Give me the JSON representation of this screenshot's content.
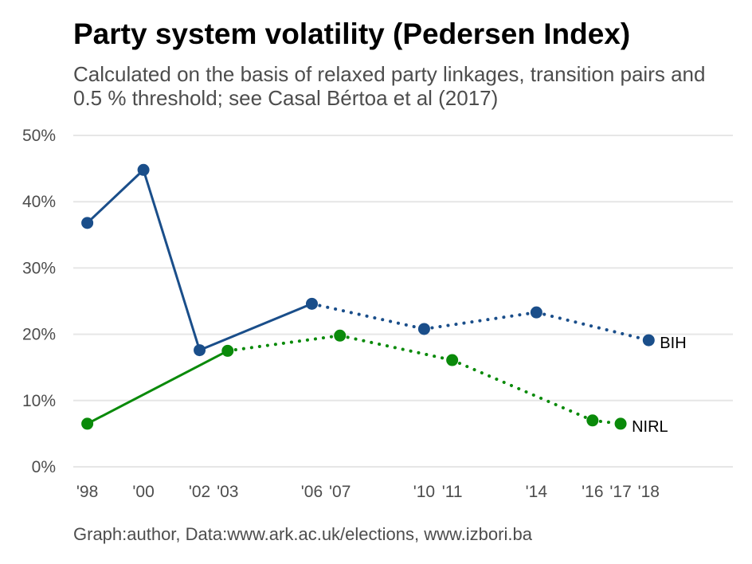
{
  "title": "Party system volatility (Pedersen Index)",
  "subtitle": "Calculated on the basis of relaxed party linkages, transition pairs and 0.5 % threshold; see Casal Bértoa et al (2017)",
  "caption": "Graph:author, Data:www.ark.ac.uk/elections, www.izbori.ba",
  "chart_data": {
    "type": "line",
    "ylim": [
      0,
      50
    ],
    "xlim": [
      1997.5,
      2021
    ],
    "y_ticks": [
      {
        "value": 0,
        "label": "0%"
      },
      {
        "value": 10,
        "label": "10%"
      },
      {
        "value": 20,
        "label": "20%"
      },
      {
        "value": 30,
        "label": "30%"
      },
      {
        "value": 40,
        "label": "40%"
      },
      {
        "value": 50,
        "label": "50%"
      }
    ],
    "x_ticks": [
      {
        "value": 1998,
        "label": "'98"
      },
      {
        "value": 2000,
        "label": "'00"
      },
      {
        "value": 2002,
        "label": "'02"
      },
      {
        "value": 2003,
        "label": "'03"
      },
      {
        "value": 2006,
        "label": "'06"
      },
      {
        "value": 2007,
        "label": "'07"
      },
      {
        "value": 2010,
        "label": "'10"
      },
      {
        "value": 2011,
        "label": "'11"
      },
      {
        "value": 2014,
        "label": "'14"
      },
      {
        "value": 2016,
        "label": "'16"
      },
      {
        "value": 2017,
        "label": "'17"
      },
      {
        "value": 2018,
        "label": "'18"
      }
    ],
    "grid": true,
    "series": [
      {
        "name": "BIH",
        "color": "#1a4e8a",
        "points": [
          {
            "x": 1998,
            "y": 36.8
          },
          {
            "x": 2000,
            "y": 44.8
          },
          {
            "x": 2002,
            "y": 17.6
          },
          {
            "x": 2006,
            "y": 24.6
          },
          {
            "x": 2010,
            "y": 20.8
          },
          {
            "x": 2014,
            "y": 23.3
          },
          {
            "x": 2018,
            "y": 19.1
          }
        ],
        "solid_until_x": 2006
      },
      {
        "name": "NIRL",
        "color": "#0a8a0a",
        "points": [
          {
            "x": 1998,
            "y": 6.5
          },
          {
            "x": 2003,
            "y": 17.5
          },
          {
            "x": 2007,
            "y": 19.8
          },
          {
            "x": 2011,
            "y": 16.1
          },
          {
            "x": 2016,
            "y": 7.0
          },
          {
            "x": 2017,
            "y": 6.5
          }
        ],
        "solid_until_x": 2003
      }
    ]
  }
}
